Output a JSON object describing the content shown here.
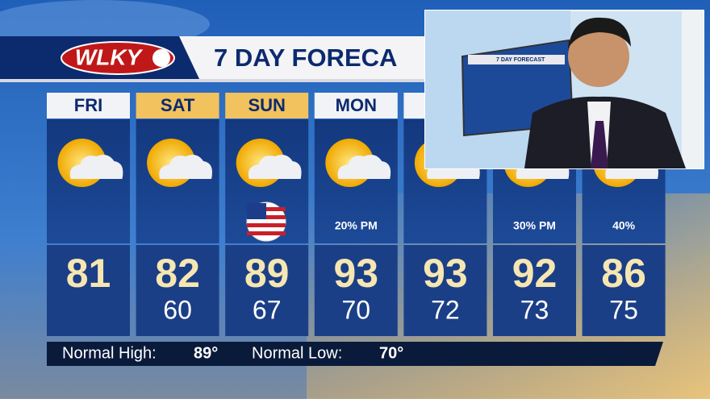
{
  "header": {
    "logo": "WLKY",
    "title": "7 DAY FORECA"
  },
  "days": [
    {
      "day": "FRI",
      "high": "81"
    },
    {
      "day": "SAT",
      "high": "82",
      "low": "60"
    },
    {
      "day": "SUN",
      "high": "89",
      "low": "67"
    },
    {
      "day": "MON",
      "high": "93",
      "low": "70",
      "precip": "20% PM"
    },
    {
      "day": "T",
      "high": "93",
      "low": "72"
    },
    {
      "high": "92",
      "low": "73",
      "precip": "30% PM"
    },
    {
      "high": "86",
      "low": "75",
      "precip": "40%"
    }
  ],
  "normals": {
    "high_label": "Normal High:",
    "high": "89°",
    "low_label": "Normal Low:",
    "low": "70°"
  },
  "inset": {
    "title": "7 DAY FORECAST"
  }
}
